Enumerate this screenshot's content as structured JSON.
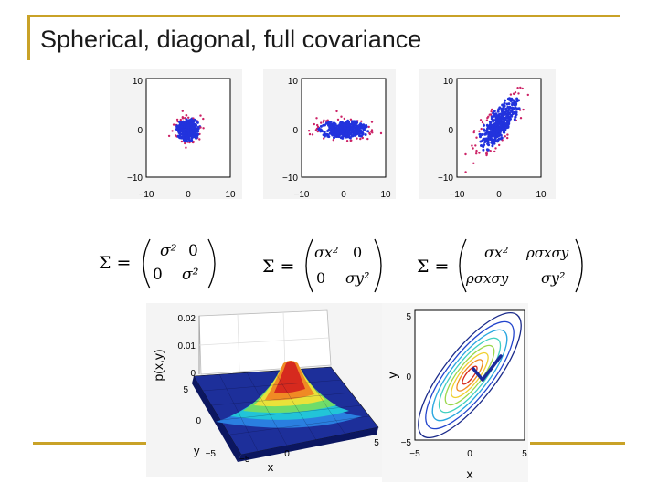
{
  "title": "Spherical, diagonal, full covariance",
  "colors": {
    "frame": "#c9a227",
    "points": "#2233dd",
    "outliers": "#cc2266",
    "background": "#ffffff"
  },
  "scatter_ticks": {
    "y": [
      "10",
      "0",
      "−10"
    ],
    "x": [
      "−10",
      "0",
      "10"
    ]
  },
  "matrices": [
    {
      "lhs": "Σ =",
      "r1c1": "σ²",
      "r1c2": "0",
      "r2c1": "0",
      "r2c2": "σ²"
    },
    {
      "lhs": "Σ =",
      "r1c1": "σx²",
      "r1c2": "0",
      "r2c1": "0",
      "r2c2": "σy²"
    },
    {
      "lhs": "Σ =",
      "r1c1": "σx²",
      "r1c2": "ρσxσy",
      "r2c1": "ρσxσy",
      "r2c2": "σy²"
    }
  ],
  "surface_plot": {
    "zlabel": "p(x,y)",
    "zticks": [
      "0.02",
      "0.01",
      "0"
    ],
    "yticks": [
      "5",
      "0",
      "−5"
    ],
    "xticks": [
      "−5",
      "0",
      "5"
    ],
    "xlabel": "x",
    "ylabel": "y"
  },
  "contour_plot": {
    "yticks": [
      "5",
      "0",
      "−5"
    ],
    "xticks": [
      "−5",
      "0",
      "5"
    ],
    "xlabel": "x",
    "ylabel": "y"
  }
}
